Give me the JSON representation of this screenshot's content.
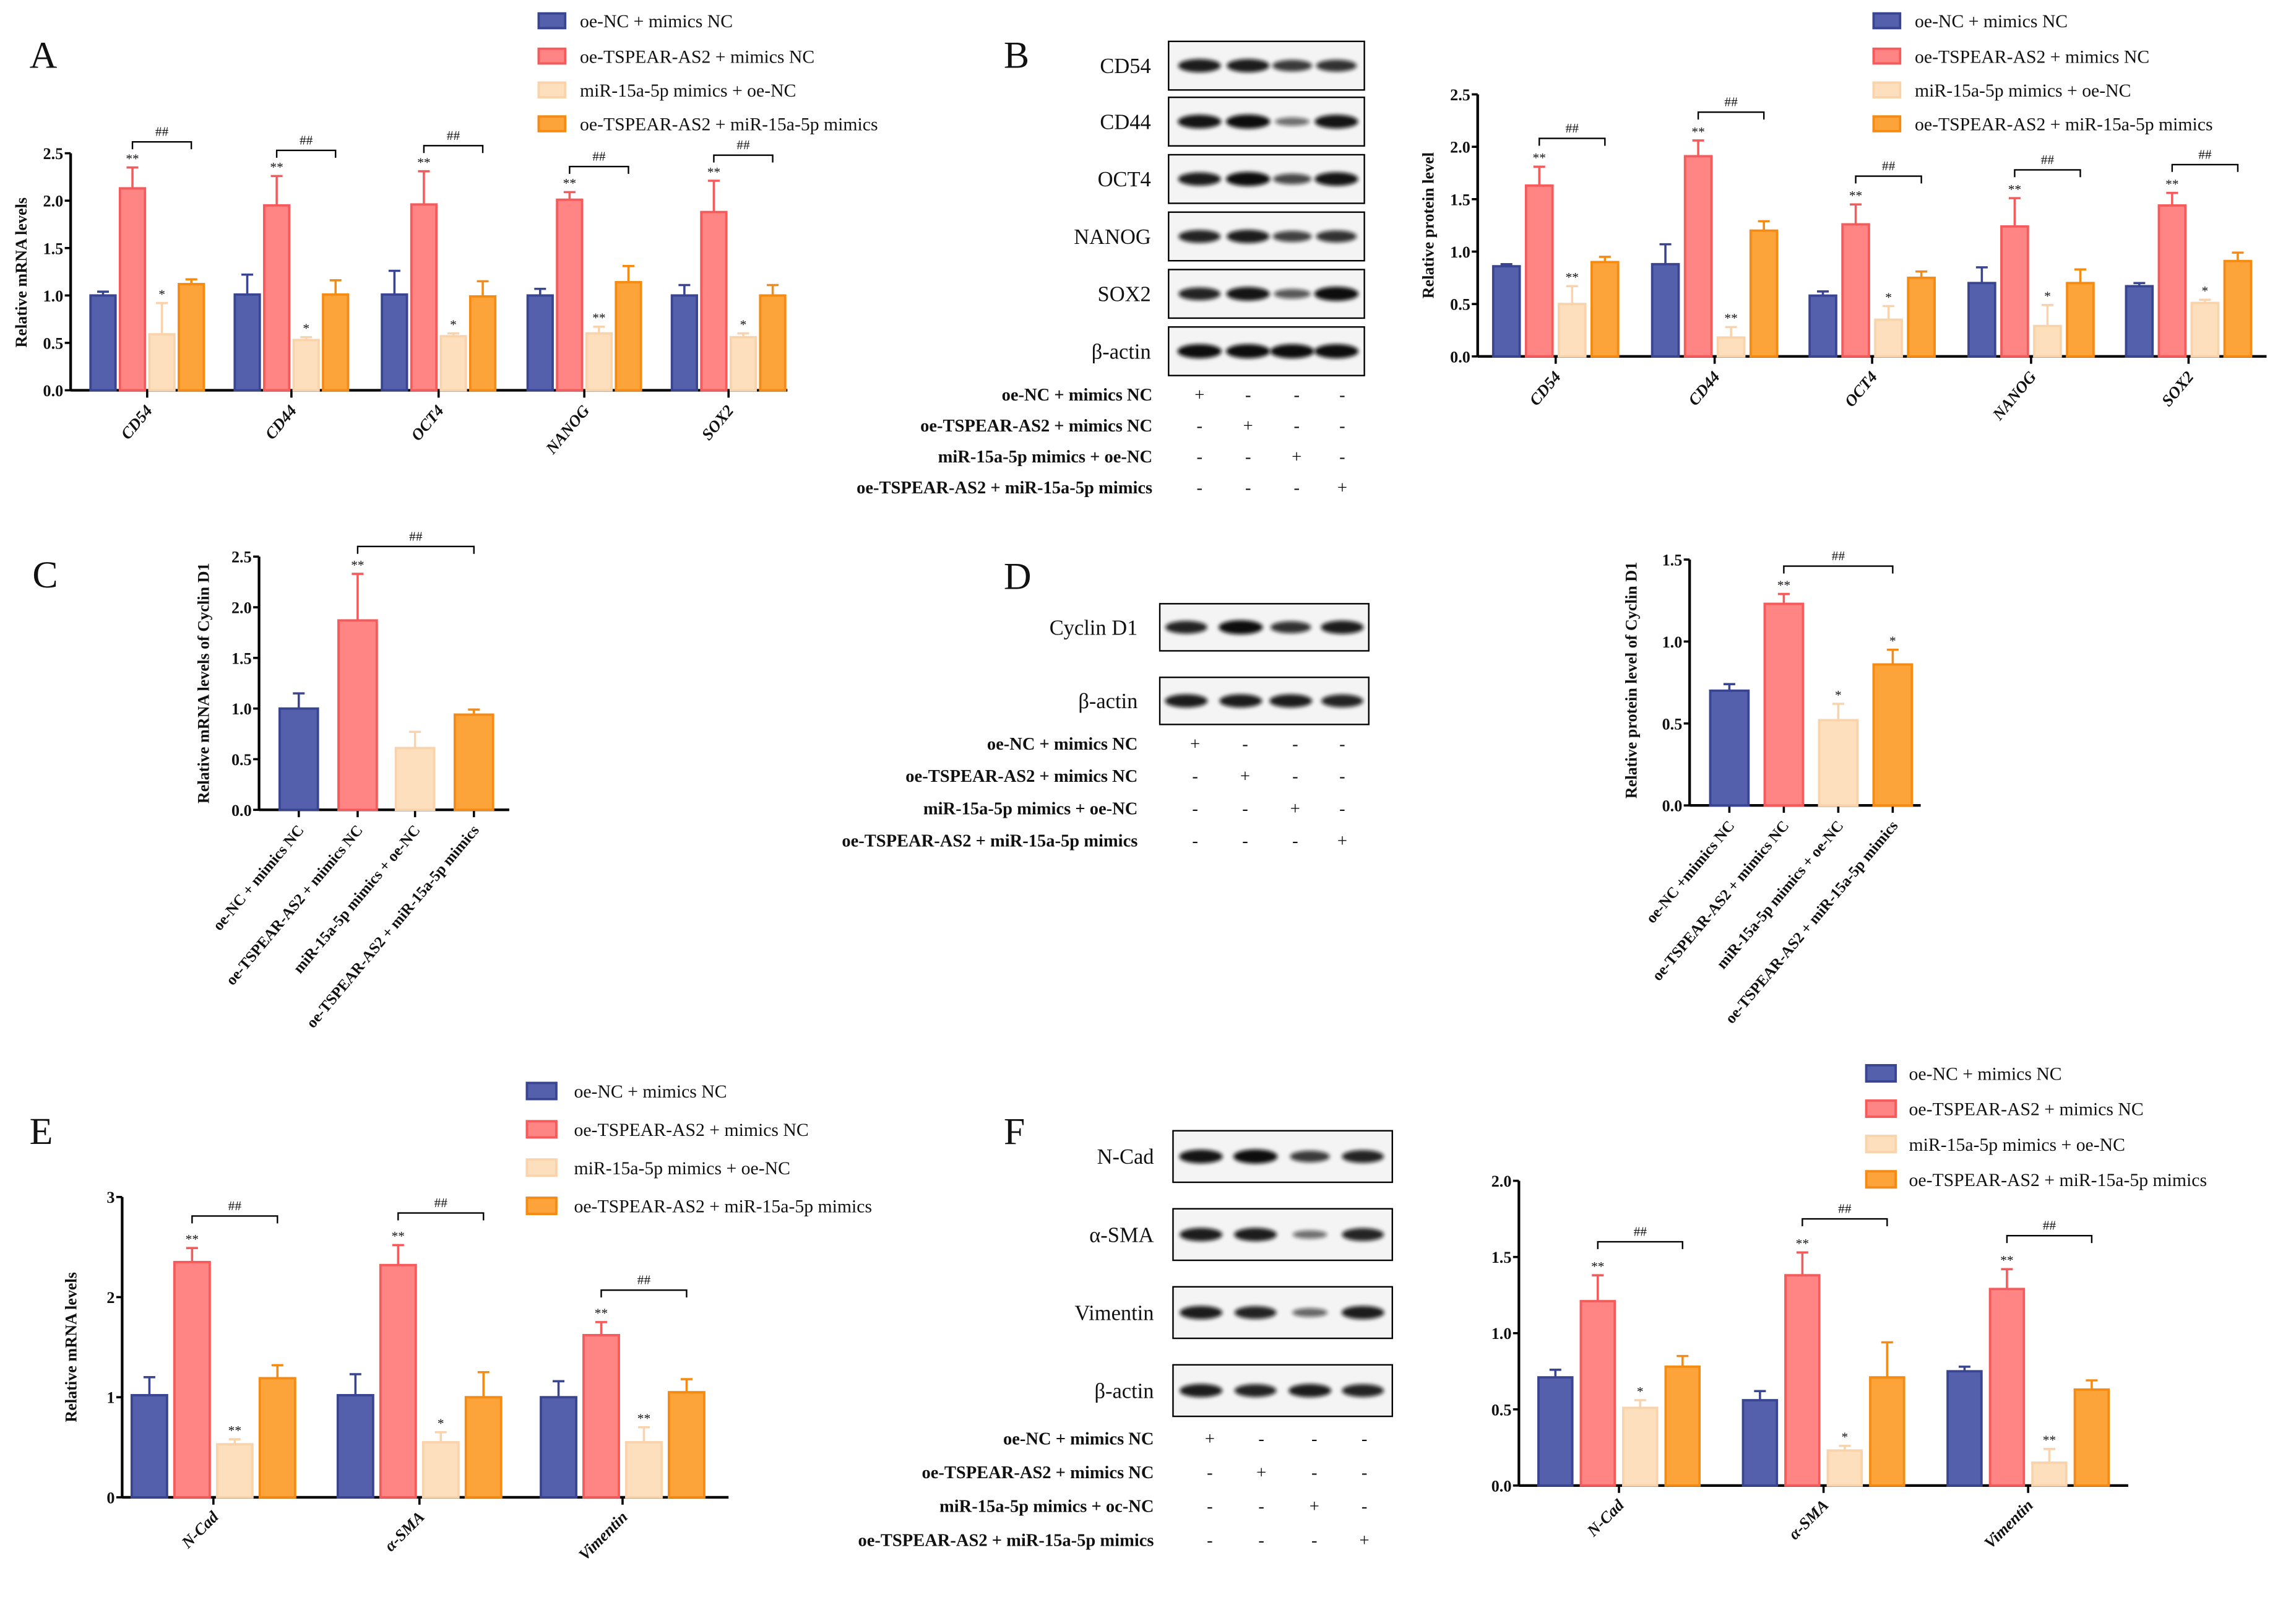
{
  "panel_letters": [
    "A",
    "B",
    "C",
    "D",
    "E",
    "F"
  ],
  "colors": {
    "fill": [
      "#5560ad",
      "#ff8585",
      "#fddfbd",
      "#fca33a"
    ],
    "stroke": [
      "#3a4592",
      "#f65a5a",
      "#f9d3ab",
      "#f68b14"
    ]
  },
  "chart_data": [
    {
      "id": "A",
      "type": "bar",
      "title": "",
      "xlabel": "",
      "ylabel": "Relative mRNA levels",
      "ylim": [
        0,
        2.5
      ],
      "yticks": [
        0,
        0.5,
        1.0,
        1.5,
        2.0,
        2.5
      ],
      "ytick_labels": [
        "0.0",
        "0.5",
        "1.0",
        "1.5",
        "2.0",
        "2.5"
      ],
      "categories": [
        "CD54",
        "CD44",
        "OCT4",
        "NANOG",
        "SOX2"
      ],
      "legend": "top-right",
      "bracket_label": "##",
      "series": [
        {
          "name": "oe-NC + mimics NC",
          "values": [
            1.0,
            1.01,
            1.01,
            1.0,
            1.0
          ],
          "errors": [
            0.04,
            0.21,
            0.25,
            0.07,
            0.11
          ],
          "sig": [
            "",
            "",
            "",
            "",
            ""
          ]
        },
        {
          "name": "oe-TSPEAR-AS2 + mimics NC",
          "values": [
            2.13,
            1.95,
            1.96,
            2.01,
            1.88
          ],
          "errors": [
            0.22,
            0.31,
            0.35,
            0.08,
            0.33
          ],
          "sig": [
            "**",
            "**",
            "**",
            "**",
            "**"
          ]
        },
        {
          "name": "miR-15a-5p mimics + oe-NC",
          "values": [
            0.59,
            0.53,
            0.57,
            0.6,
            0.56
          ],
          "errors": [
            0.33,
            0.03,
            0.03,
            0.07,
            0.04
          ],
          "sig": [
            "*",
            "*",
            "*",
            "**",
            "*"
          ]
        },
        {
          "name": "oe-TSPEAR-AS2 + miR-15a-5p mimics",
          "values": [
            1.12,
            1.01,
            0.99,
            1.14,
            1.0
          ],
          "errors": [
            0.05,
            0.15,
            0.16,
            0.17,
            0.11
          ],
          "sig": [
            "",
            "",
            "",
            "",
            ""
          ]
        }
      ]
    },
    {
      "id": "B",
      "type": "bar",
      "title": "",
      "xlabel": "",
      "ylabel": "Relative protein level",
      "ylim": [
        0,
        2.5
      ],
      "yticks": [
        0,
        0.5,
        1.0,
        1.5,
        2.0,
        2.5
      ],
      "ytick_labels": [
        "0.0",
        "0.5",
        "1.0",
        "1.5",
        "2.0",
        "2.5"
      ],
      "categories": [
        "CD54",
        "CD44",
        "OCT4",
        "NANOG",
        "SOX2"
      ],
      "legend": "top-right",
      "bracket_label": "##",
      "series": [
        {
          "name": "oe-NC + mimics NC",
          "values": [
            0.86,
            0.88,
            0.58,
            0.7,
            0.67
          ],
          "errors": [
            0.02,
            0.19,
            0.04,
            0.15,
            0.03
          ],
          "sig": [
            "",
            "",
            "",
            "",
            ""
          ]
        },
        {
          "name": "oe-TSPEAR-AS2 + mimics NC",
          "values": [
            1.63,
            1.91,
            1.26,
            1.24,
            1.44
          ],
          "errors": [
            0.18,
            0.15,
            0.19,
            0.27,
            0.12
          ],
          "sig": [
            "**",
            "**",
            "**",
            "**",
            "**"
          ]
        },
        {
          "name": "miR-15a-5p mimics + oe-NC",
          "values": [
            0.5,
            0.18,
            0.35,
            0.29,
            0.51
          ],
          "errors": [
            0.17,
            0.1,
            0.13,
            0.2,
            0.03
          ],
          "sig": [
            "**",
            "**",
            "*",
            "*",
            "*"
          ]
        },
        {
          "name": "oe-TSPEAR-AS2 + miR-15a-5p mimics",
          "values": [
            0.9,
            1.2,
            0.75,
            0.7,
            0.91
          ],
          "errors": [
            0.05,
            0.09,
            0.06,
            0.13,
            0.08
          ],
          "sig": [
            "",
            "",
            "",
            "",
            ""
          ]
        }
      ]
    },
    {
      "id": "C",
      "type": "bar",
      "title": "",
      "xlabel": "",
      "ylabel": "Relative mRNA levels of Cyclin D1",
      "ylim": [
        0,
        2.5
      ],
      "yticks": [
        0,
        0.5,
        1.0,
        1.5,
        2.0,
        2.5
      ],
      "ytick_labels": [
        "0.0",
        "0.5",
        "1.0",
        "1.5",
        "2.0",
        "2.5"
      ],
      "categories": [
        "oe-NC + mimics NC",
        "oe-TSPEAR-AS2 + mimics NC",
        "miR-15a-5p mimics + oe-NC",
        "oe-TSPEAR-AS2 + miR-15a-5p mimics"
      ],
      "bracket_label": "##",
      "values": [
        1.0,
        1.87,
        0.61,
        0.94
      ],
      "errors": [
        0.15,
        0.46,
        0.16,
        0.05
      ],
      "sig": [
        "",
        "**",
        "",
        ""
      ]
    },
    {
      "id": "D",
      "type": "bar",
      "title": "",
      "xlabel": "",
      "ylabel": "Relative protein level of Cyclin D1",
      "ylim": [
        0,
        1.5
      ],
      "yticks": [
        0,
        0.5,
        1.0,
        1.5
      ],
      "ytick_labels": [
        "0.0",
        "0.5",
        "1.0",
        "1.5"
      ],
      "categories": [
        "oe-NC +mimics NC",
        "oe-TSPEAR-AS2 + mimics NC",
        "miR-15a-5p mimics + oe-NC",
        "oe-TSPEAR-AS2 + miR-15a-5p mimics"
      ],
      "bracket_label": "##",
      "values": [
        0.7,
        1.23,
        0.52,
        0.86
      ],
      "errors": [
        0.04,
        0.06,
        0.1,
        0.09
      ],
      "sig": [
        "",
        "**",
        "*",
        "*"
      ]
    },
    {
      "id": "E",
      "type": "bar",
      "title": "",
      "xlabel": "",
      "ylabel": "Relative mRNA levels",
      "ylim": [
        0,
        3
      ],
      "yticks": [
        0,
        1,
        2,
        3
      ],
      "ytick_labels": [
        "0",
        "1",
        "2",
        "3"
      ],
      "categories": [
        "N-Cad",
        "α-SMA",
        "Vimentin"
      ],
      "legend": "top-right",
      "bracket_label": "##",
      "series": [
        {
          "name": "oe-NC + mimics NC",
          "values": [
            1.02,
            1.02,
            1.0
          ],
          "errors": [
            0.18,
            0.21,
            0.16
          ],
          "sig": [
            "",
            "",
            ""
          ]
        },
        {
          "name": "oe-TSPEAR-AS2 + mimics NC",
          "values": [
            2.35,
            2.32,
            1.62
          ],
          "errors": [
            0.14,
            0.2,
            0.13
          ],
          "sig": [
            "**",
            "**",
            "**"
          ]
        },
        {
          "name": "miR-15a-5p mimics + oe-NC",
          "values": [
            0.53,
            0.55,
            0.55
          ],
          "errors": [
            0.05,
            0.1,
            0.15
          ],
          "sig": [
            "**",
            "*",
            "**"
          ]
        },
        {
          "name": "oe-TSPEAR-AS2 + miR-15a-5p mimics",
          "values": [
            1.19,
            1.0,
            1.05
          ],
          "errors": [
            0.13,
            0.25,
            0.13
          ],
          "sig": [
            "",
            "",
            ""
          ]
        }
      ]
    },
    {
      "id": "F",
      "type": "bar",
      "title": "",
      "xlabel": "",
      "ylabel": "",
      "ylim": [
        0,
        2.0
      ],
      "yticks": [
        0,
        0.5,
        1.0,
        1.5,
        2.0
      ],
      "ytick_labels": [
        "0.0",
        "0.5",
        "1.0",
        "1.5",
        "2.0"
      ],
      "categories": [
        "N-Cad",
        "α-SMA",
        "Vimentin"
      ],
      "legend": "top-right",
      "bracket_label": "##",
      "series": [
        {
          "name": "oe-NC + mimics NC",
          "values": [
            0.71,
            0.56,
            0.75
          ],
          "errors": [
            0.05,
            0.06,
            0.03
          ],
          "sig": [
            "",
            "",
            ""
          ]
        },
        {
          "name": "oe-TSPEAR-AS2 + mimics NC",
          "values": [
            1.21,
            1.38,
            1.29
          ],
          "errors": [
            0.17,
            0.15,
            0.13
          ],
          "sig": [
            "**",
            "**",
            "**"
          ]
        },
        {
          "name": "miR-15a-5p mimics + oe-NC",
          "values": [
            0.51,
            0.23,
            0.15
          ],
          "errors": [
            0.05,
            0.03,
            0.09
          ],
          "sig": [
            "*",
            "*",
            "**"
          ]
        },
        {
          "name": "oe-TSPEAR-AS2 + miR-15a-5p mimics",
          "values": [
            0.78,
            0.71,
            0.63
          ],
          "errors": [
            0.07,
            0.23,
            0.06
          ],
          "sig": [
            "",
            "",
            ""
          ]
        }
      ]
    }
  ],
  "blots": [
    {
      "id": "B",
      "rows": [
        {
          "label": "CD54",
          "intensity": [
            0.9,
            0.9,
            0.7,
            0.75
          ]
        },
        {
          "label": "CD44",
          "intensity": [
            0.95,
            1.0,
            0.35,
            0.95
          ]
        },
        {
          "label": "OCT4",
          "intensity": [
            0.9,
            1.0,
            0.6,
            0.95
          ]
        },
        {
          "label": "NANOG",
          "intensity": [
            0.85,
            0.9,
            0.65,
            0.75
          ]
        },
        {
          "label": "SOX2",
          "intensity": [
            0.85,
            0.95,
            0.5,
            1.0
          ]
        },
        {
          "label": "β-actin",
          "intensity": [
            1.0,
            1.0,
            1.0,
            1.0
          ]
        }
      ],
      "treatments": [
        {
          "label": "oe-NC + mimics NC",
          "signs": [
            "+",
            "-",
            "-",
            "-"
          ]
        },
        {
          "label": "oe-TSPEAR-AS2 + mimics NC",
          "signs": [
            "-",
            "+",
            "-",
            "-"
          ]
        },
        {
          "label": "miR-15a-5p mimics + oe-NC",
          "signs": [
            "-",
            "-",
            "+",
            "-"
          ]
        },
        {
          "label": "oe-TSPEAR-AS2 + miR-15a-5p mimics",
          "signs": [
            "-",
            "-",
            "-",
            "+"
          ]
        }
      ]
    },
    {
      "id": "D",
      "rows": [
        {
          "label": "Cyclin D1",
          "intensity": [
            0.85,
            1.0,
            0.75,
            0.9
          ]
        },
        {
          "label": "β-actin",
          "intensity": [
            0.9,
            0.9,
            0.9,
            0.85
          ]
        }
      ],
      "treatments": [
        {
          "label": "oe-NC + mimics NC",
          "signs": [
            "+",
            "-",
            "-",
            "-"
          ]
        },
        {
          "label": "oe-TSPEAR-AS2 + mimics NC",
          "signs": [
            "-",
            "+",
            "-",
            "-"
          ]
        },
        {
          "label": "miR-15a-5p mimics + oe-NC",
          "signs": [
            "-",
            "-",
            "+",
            "-"
          ]
        },
        {
          "label": "oe-TSPEAR-AS2 + miR-15a-5p mimics",
          "signs": [
            "-",
            "-",
            "-",
            "+"
          ]
        }
      ]
    },
    {
      "id": "F",
      "rows": [
        {
          "label": "N-Cad",
          "intensity": [
            0.95,
            1.0,
            0.7,
            0.85
          ]
        },
        {
          "label": "α-SMA",
          "intensity": [
            0.9,
            0.9,
            0.35,
            0.85
          ]
        },
        {
          "label": "Vimentin",
          "intensity": [
            0.9,
            0.85,
            0.4,
            0.9
          ]
        },
        {
          "label": "β-actin",
          "intensity": [
            0.9,
            0.85,
            0.9,
            0.85
          ]
        }
      ],
      "treatments": [
        {
          "label": "oe-NC + mimics NC",
          "signs": [
            "+",
            "-",
            "-",
            "-"
          ]
        },
        {
          "label": "oe-TSPEAR-AS2 + mimics NC",
          "signs": [
            "-",
            "+",
            "-",
            "-"
          ]
        },
        {
          "label": "miR-15a-5p mimics + oc-NC",
          "signs": [
            "-",
            "-",
            "+",
            "-"
          ]
        },
        {
          "label": "oe-TSPEAR-AS2 + miR-15a-5p mimics",
          "signs": [
            "-",
            "-",
            "-",
            "+"
          ]
        }
      ]
    }
  ]
}
